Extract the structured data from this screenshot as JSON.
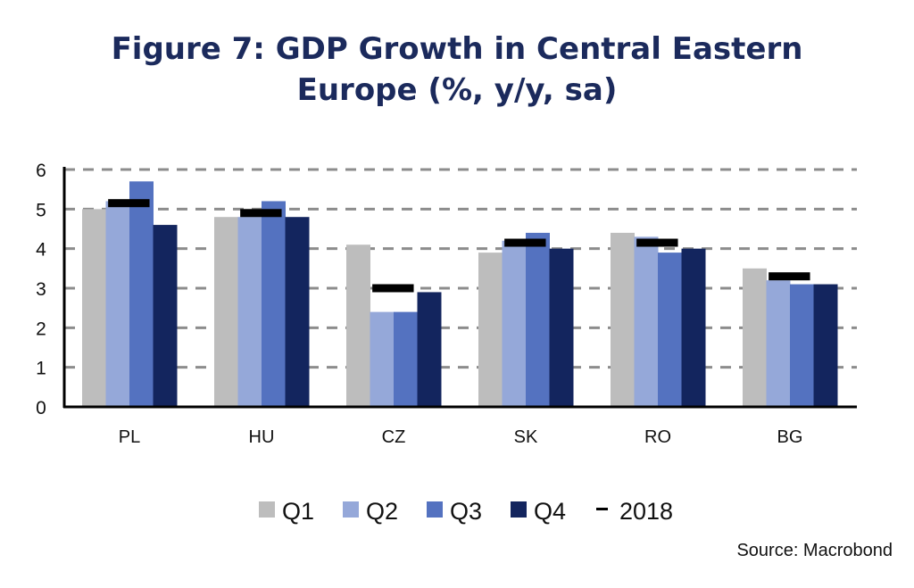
{
  "chart_data": {
    "type": "bar",
    "title_lines": [
      "Figure 7: GDP Growth in Central Eastern",
      "Europe (%, y/y, sa)"
    ],
    "categories": [
      "PL",
      "HU",
      "CZ",
      "SK",
      "RO",
      "BG"
    ],
    "series": [
      {
        "name": "Q1",
        "color": "#bdbdbd",
        "values": [
          5.0,
          4.8,
          4.1,
          3.9,
          4.4,
          3.5
        ]
      },
      {
        "name": "Q2",
        "color": "#95a8d9",
        "values": [
          5.2,
          4.8,
          2.4,
          4.2,
          4.3,
          3.2
        ]
      },
      {
        "name": "Q3",
        "color": "#5472c0",
        "values": [
          5.7,
          5.2,
          2.4,
          4.4,
          3.9,
          3.1
        ]
      },
      {
        "name": "Q4",
        "color": "#13255e",
        "values": [
          4.6,
          4.8,
          2.9,
          4.0,
          4.0,
          3.1
        ]
      }
    ],
    "markers": {
      "name": "2018",
      "color": "#000000",
      "values": [
        5.15,
        4.9,
        3.0,
        4.15,
        4.15,
        3.3
      ]
    },
    "ylim": [
      0,
      6
    ],
    "yticks": [
      "0",
      "1",
      "2",
      "3",
      "4",
      "5",
      "6"
    ],
    "grid": true,
    "legend": "bottom",
    "source": "Source: Macrobond"
  }
}
